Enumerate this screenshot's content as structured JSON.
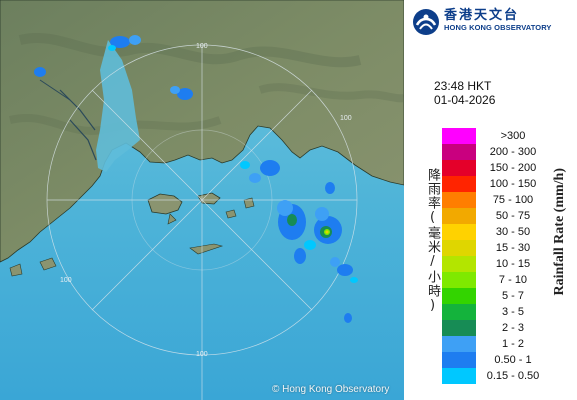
{
  "map": {
    "copyright": "© Hong Kong Observatory",
    "range_labels": [
      "100",
      "100",
      "100",
      "100"
    ]
  },
  "panel": {
    "logo": {
      "name_cn": "香港天文台",
      "name_en": "HONG KONG OBSERVATORY",
      "color": "#0d3e8a"
    },
    "time": "23:48 HKT",
    "date": "01-04-2026",
    "axis_label_cn": "降雨率(毫米/小時)",
    "axis_label_en": "Rainfall Rate (mm/h)"
  },
  "legend": [
    {
      "label": ">300",
      "color": "#ff00ff"
    },
    {
      "label": "200 - 300",
      "color": "#c9007f"
    },
    {
      "label": "150 - 200",
      "color": "#e4002a"
    },
    {
      "label": "100 - 150",
      "color": "#ff2400"
    },
    {
      "label": "75 - 100",
      "color": "#ff7e00"
    },
    {
      "label": "50 - 75",
      "color": "#f2a900"
    },
    {
      "label": "30 - 50",
      "color": "#ffd200"
    },
    {
      "label": "15 - 30",
      "color": "#dfd600"
    },
    {
      "label": "10 - 15",
      "color": "#b3e500"
    },
    {
      "label": "7 - 10",
      "color": "#7fe900"
    },
    {
      "label": "5 - 7",
      "color": "#33d400"
    },
    {
      "label": "3 - 5",
      "color": "#14b33c"
    },
    {
      "label": "2 - 3",
      "color": "#178c55"
    },
    {
      "label": "1 - 2",
      "color": "#3ea0f5"
    },
    {
      "label": "0.50 - 1",
      "color": "#1e7df0"
    },
    {
      "label": "0.15 - 0.50",
      "color": "#00c8ff"
    }
  ]
}
